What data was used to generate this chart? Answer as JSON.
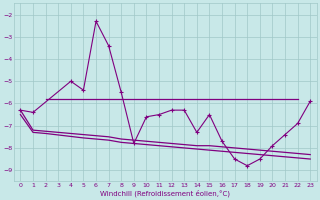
{
  "x": [
    0,
    1,
    2,
    3,
    4,
    5,
    6,
    7,
    8,
    9,
    10,
    11,
    12,
    13,
    14,
    15,
    16,
    17,
    18,
    19,
    20,
    21,
    22,
    23
  ],
  "line1_y": [
    -6.3,
    -6.4,
    null,
    null,
    -5.0,
    -5.4,
    -2.3,
    -3.4,
    -5.5,
    -7.8,
    -6.6,
    -6.5,
    -6.3,
    -6.3,
    -7.3,
    -6.5,
    -7.7,
    -8.5,
    -8.8,
    -8.5,
    -7.9,
    -7.4,
    -6.9,
    -5.9
  ],
  "line2_x": [
    2,
    3,
    4,
    5,
    6,
    7,
    8,
    9,
    10,
    11,
    12,
    13,
    14,
    15,
    16,
    17,
    18,
    19,
    20,
    21,
    22
  ],
  "line2_y": [
    -5.8,
    -5.8,
    -5.8,
    -5.8,
    -5.8,
    -5.8,
    -5.8,
    -5.8,
    -5.8,
    -5.8,
    -5.8,
    -5.8,
    -5.8,
    -5.8,
    -5.8,
    -5.8,
    -5.8,
    -5.8,
    -5.8,
    -5.8,
    -5.8
  ],
  "line3_x": [
    0,
    1,
    2,
    5,
    6,
    7,
    8,
    9,
    10,
    11,
    12,
    13,
    14,
    15,
    16,
    17,
    18,
    19,
    20,
    21,
    22,
    23
  ],
  "line3_y": [
    -6.3,
    -7.2,
    -7.25,
    -7.4,
    -7.45,
    -7.5,
    -7.6,
    -7.65,
    -7.7,
    -7.75,
    -7.8,
    -7.85,
    -7.9,
    -7.9,
    -7.95,
    -8.0,
    -8.05,
    -8.1,
    -8.15,
    -8.2,
    -8.25,
    -8.3
  ],
  "line4_x": [
    0,
    1,
    2,
    5,
    6,
    7,
    8,
    9,
    10,
    11,
    12,
    13,
    14,
    15,
    16,
    17,
    18,
    19,
    20,
    21,
    22,
    23
  ],
  "line4_y": [
    -6.5,
    -7.3,
    -7.35,
    -7.55,
    -7.6,
    -7.65,
    -7.75,
    -7.8,
    -7.85,
    -7.9,
    -7.95,
    -8.0,
    -8.05,
    -8.1,
    -8.15,
    -8.2,
    -8.25,
    -8.3,
    -8.35,
    -8.4,
    -8.45,
    -8.5
  ],
  "bg_color": "#c8e8e8",
  "grid_color": "#a0c8c8",
  "line_color": "#800080",
  "ylim": [
    -9.5,
    -1.5
  ],
  "xlim": [
    -0.5,
    23.5
  ],
  "yticks": [
    -9,
    -8,
    -7,
    -6,
    -5,
    -4,
    -3,
    -2
  ],
  "xticks": [
    0,
    1,
    2,
    3,
    4,
    5,
    6,
    7,
    8,
    9,
    10,
    11,
    12,
    13,
    14,
    15,
    16,
    17,
    18,
    19,
    20,
    21,
    22,
    23
  ],
  "xlabel": "Windchill (Refroidissement éolien,°C)",
  "font_color": "#800080"
}
